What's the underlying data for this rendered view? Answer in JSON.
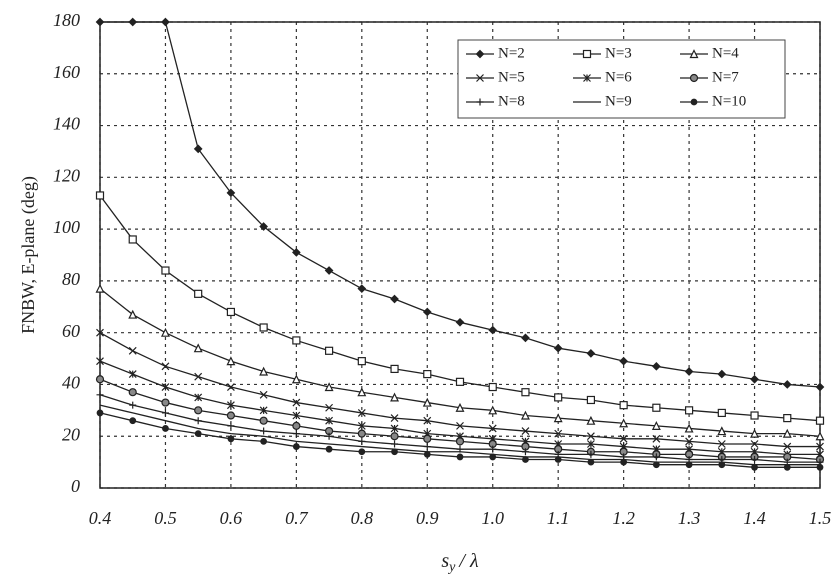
{
  "chart_data": {
    "type": "line",
    "ylabel": "FNBW, E-plane (deg)",
    "xlabel": [
      "s",
      "y",
      "/ λ"
    ],
    "x": [
      0.4,
      0.45,
      0.5,
      0.55,
      0.6,
      0.65,
      0.7,
      0.75,
      0.8,
      0.85,
      0.9,
      0.95,
      1.0,
      1.05,
      1.1,
      1.15,
      1.2,
      1.25,
      1.3,
      1.35,
      1.4,
      1.45,
      1.5
    ],
    "xlim": [
      0.4,
      1.5
    ],
    "xticks": [
      0.4,
      0.5,
      0.6,
      0.7,
      0.8,
      0.9,
      {
        "value": 1,
        "label": "1.0"
      },
      1.1,
      1.2,
      1.3,
      1.4,
      1.5
    ],
    "ylim": [
      0,
      180
    ],
    "yticks": [
      0,
      20,
      40,
      60,
      80,
      100,
      120,
      140,
      160,
      180
    ],
    "grid": true,
    "legend": "upper right",
    "series": [
      {
        "name": "N=2",
        "color": "#222222",
        "marker": "diamond",
        "values": [
          180,
          180,
          180,
          131,
          114,
          101,
          91,
          84,
          77,
          73,
          68,
          64,
          61,
          58,
          54,
          52,
          49,
          47,
          45,
          44,
          42,
          40,
          39
        ]
      },
      {
        "name": "N=3",
        "color": "#222222",
        "marker": "square",
        "values": [
          113,
          96,
          84,
          75,
          68,
          62,
          57,
          53,
          49,
          46,
          44,
          41,
          39,
          37,
          35,
          34,
          32,
          31,
          30,
          29,
          28,
          27,
          26
        ]
      },
      {
        "name": "N=4",
        "color": "#222222",
        "marker": "triangle",
        "values": [
          77,
          67,
          60,
          54,
          49,
          45,
          42,
          39,
          37,
          35,
          33,
          31,
          30,
          28,
          27,
          26,
          25,
          24,
          23,
          22,
          21,
          21,
          20
        ]
      },
      {
        "name": "N=5",
        "color": "#222222",
        "marker": "x",
        "values": [
          60,
          53,
          47,
          43,
          39,
          36,
          33,
          31,
          29,
          27,
          26,
          24,
          23,
          22,
          21,
          20,
          19,
          19,
          18,
          17,
          17,
          16,
          16
        ]
      },
      {
        "name": "N=6",
        "color": "#222222",
        "marker": "star",
        "values": [
          49,
          44,
          39,
          35,
          32,
          30,
          28,
          26,
          24,
          23,
          21,
          20,
          19,
          18,
          17,
          17,
          16,
          15,
          15,
          14,
          14,
          13,
          13
        ]
      },
      {
        "name": "N=7",
        "color": "#222222",
        "marker": "circle",
        "values": [
          42,
          37,
          33,
          30,
          28,
          26,
          24,
          22,
          21,
          20,
          19,
          18,
          17,
          16,
          15,
          14,
          14,
          13,
          13,
          12,
          12,
          12,
          11
        ]
      },
      {
        "name": "N=8",
        "color": "#222222",
        "marker": "plus",
        "values": [
          36,
          32,
          29,
          26,
          24,
          22,
          21,
          20,
          18,
          17,
          16,
          15,
          15,
          14,
          13,
          13,
          12,
          12,
          11,
          11,
          11,
          10,
          10
        ]
      },
      {
        "name": "N=9",
        "color": "#222222",
        "marker": "none",
        "values": [
          32,
          29,
          26,
          23,
          21,
          20,
          18,
          17,
          16,
          15,
          14,
          14,
          13,
          12,
          12,
          11,
          11,
          10,
          10,
          10,
          9,
          9,
          9
        ]
      },
      {
        "name": "N=10",
        "color": "#222222",
        "marker": "dot",
        "values": [
          29,
          26,
          23,
          21,
          19,
          18,
          16,
          15,
          14,
          14,
          13,
          12,
          12,
          11,
          11,
          10,
          10,
          9,
          9,
          9,
          8,
          8,
          8
        ]
      }
    ]
  }
}
